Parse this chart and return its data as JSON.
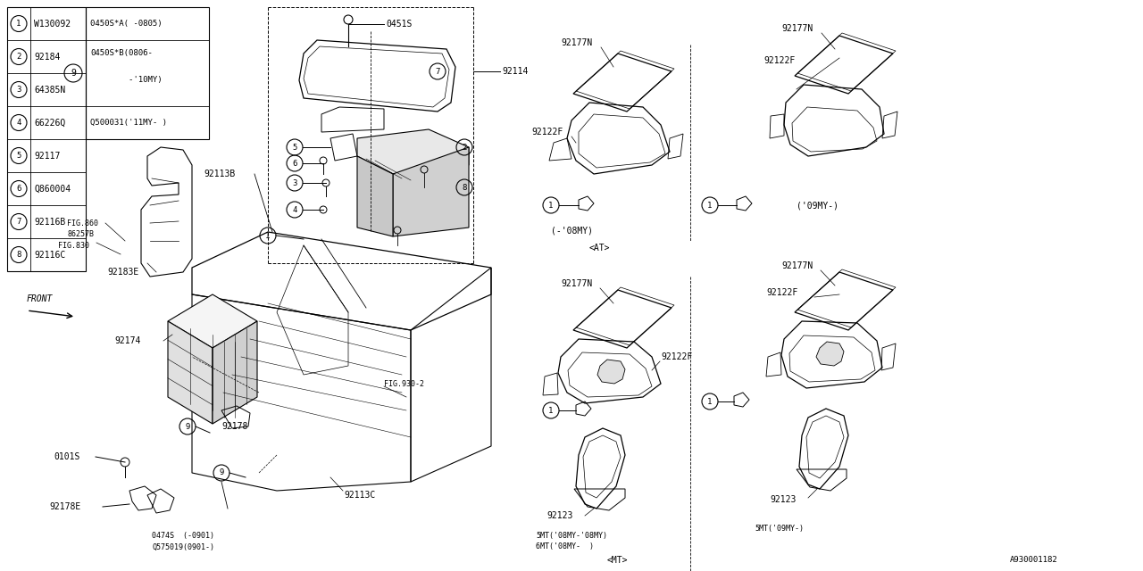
{
  "bg_color": "#ffffff",
  "line_color": "#000000",
  "fig_width": 12.8,
  "fig_height": 6.4,
  "dpi": 100,
  "table_rows": [
    [
      "1",
      "W130092"
    ],
    [
      "2",
      "92184"
    ],
    [
      "3",
      "64385N"
    ],
    [
      "4",
      "66226Q"
    ],
    [
      "5",
      "92117"
    ],
    [
      "6",
      "Q860004"
    ],
    [
      "7",
      "92116B"
    ],
    [
      "8",
      "92116C"
    ]
  ],
  "table_col3": [
    "0450S*A( -0805)",
    "0450S*B(0806-",
    "        -'10MY)",
    "Q500031('11MY- )"
  ]
}
